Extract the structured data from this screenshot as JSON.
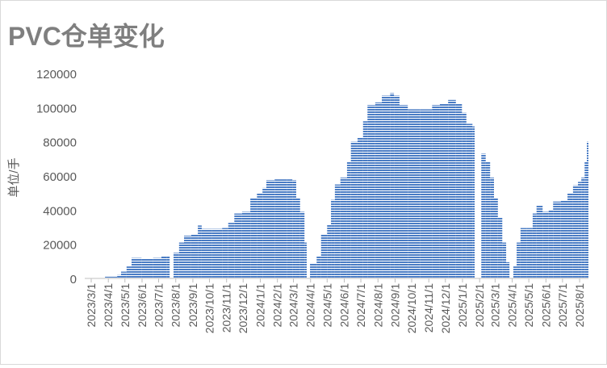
{
  "chart_data": {
    "type": "bar",
    "title": "PVC仓单变化",
    "y_label": "单位/手",
    "color": "#4a7cc4",
    "x": [
      "2023/3/1",
      "2023/3/26",
      "2023/4/17",
      "2023/4/24",
      "2023/5/4",
      "2023/5/13",
      "2023/5/31",
      "2023/6/21",
      "2023/7/6",
      "2023/7/16",
      "2023/7/21",
      "2023/7/28",
      "2023/8/7",
      "2023/8/16",
      "2023/8/29",
      "2023/9/10",
      "2023/9/17",
      "2023/10/6",
      "2023/10/24",
      "2023/11/4",
      "2023/11/15",
      "2023/11/29",
      "2023/12/14",
      "2023/12/26",
      "2024/1/5",
      "2024/1/12",
      "2024/1/27",
      "2024/2/18",
      "2024/2/28",
      "2024/3/6",
      "2024/3/13",
      "2024/3/21",
      "2024/3/25",
      "2024/3/31",
      "2024/4/12",
      "2024/4/20",
      "2024/5/1",
      "2024/5/8",
      "2024/5/15",
      "2024/5/25",
      "2024/6/6",
      "2024/6/13",
      "2024/6/25",
      "2024/7/5",
      "2024/7/13",
      "2024/7/27",
      "2024/8/8",
      "2024/8/23",
      "2024/8/30",
      "2024/9/9",
      "2024/9/24",
      "2024/10/16",
      "2024/11/7",
      "2024/11/21",
      "2024/12/6",
      "2024/12/20",
      "2024/12/31",
      "2025/1/8",
      "2025/1/19",
      "2025/1/23",
      "2025/1/26",
      "2025/2/4",
      "2025/2/12",
      "2025/2/20",
      "2025/2/27",
      "2025/3/6",
      "2025/3/14",
      "2025/3/21",
      "2025/3/27",
      "2025/4/3",
      "2025/4/9",
      "2025/4/16",
      "2025/4/27",
      "2025/5/8",
      "2025/5/15",
      "2025/5/26",
      "2025/6/6",
      "2025/6/14",
      "2025/6/28",
      "2025/7/10",
      "2025/7/20",
      "2025/7/29",
      "2025/8/4",
      "2025/8/10",
      "2025/8/14"
    ],
    "values": [
      0,
      1000,
      2000,
      4000,
      7000,
      12000,
      11500,
      12000,
      13000,
      13000,
      0,
      15000,
      21000,
      25000,
      26000,
      31000,
      29000,
      29000,
      29500,
      32500,
      38000,
      39000,
      47000,
      50000,
      53000,
      57500,
      58000,
      58000,
      57500,
      47000,
      39000,
      21000,
      0,
      9000,
      13000,
      26000,
      31500,
      46000,
      55000,
      59000,
      68500,
      80000,
      82500,
      92000,
      101500,
      103000,
      107000,
      108500,
      107000,
      101500,
      99000,
      99000,
      101500,
      102500,
      104500,
      102500,
      97000,
      90500,
      89000,
      0,
      0,
      73000,
      68500,
      59000,
      47000,
      35500,
      21000,
      9500,
      0,
      7000,
      21000,
      29500,
      29500,
      38000,
      42500,
      39000,
      40000,
      45000,
      45500,
      50000,
      54500,
      56500,
      59000,
      68500,
      80000
    ],
    "ylim": [
      0,
      120000
    ],
    "yticks": [
      0,
      20000,
      40000,
      60000,
      80000,
      100000,
      120000
    ],
    "xticks": [
      "2023/3/1",
      "2023/4/1",
      "2023/5/1",
      "2023/6/1",
      "2023/7/1",
      "2023/8/1",
      "2023/9/1",
      "2023/10/1",
      "2023/11/1",
      "2023/12/1",
      "2024/1/1",
      "2024/2/1",
      "2024/3/1",
      "2024/4/1",
      "2024/5/1",
      "2024/6/1",
      "2024/7/1",
      "2024/8/1",
      "2024/9/1",
      "2024/10/1",
      "2024/11/1",
      "2024/12/1",
      "2025/1/1",
      "2025/2/1",
      "2025/3/1",
      "2025/4/1",
      "2025/5/1",
      "2025/6/1",
      "2025/7/1",
      "2025/8/1"
    ]
  }
}
